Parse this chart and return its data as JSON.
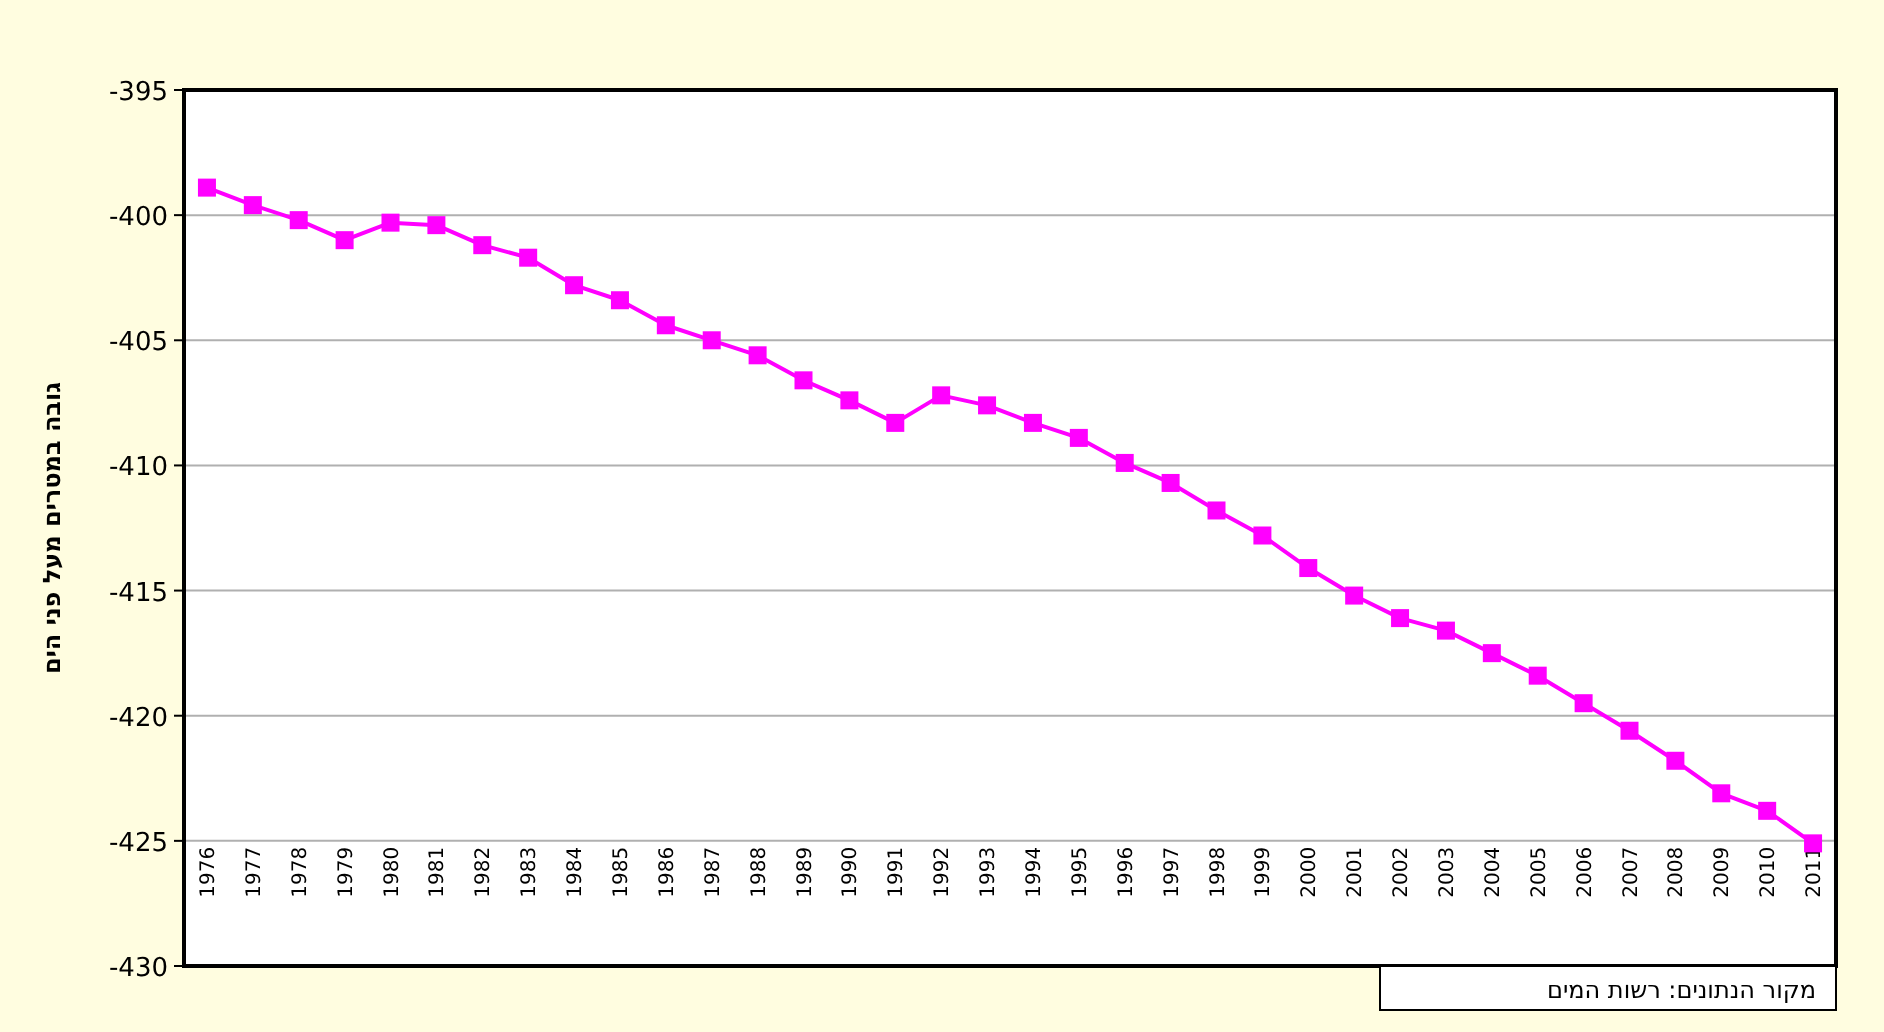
{
  "chart_data": {
    "type": "line",
    "ylabel": "גובה במטרים מעל פני הים",
    "categories": [
      "1976",
      "1977",
      "1978",
      "1979",
      "1980",
      "1981",
      "1982",
      "1983",
      "1984",
      "1985",
      "1986",
      "1987",
      "1988",
      "1989",
      "1990",
      "1991",
      "1992",
      "1993",
      "1994",
      "1995",
      "1996",
      "1997",
      "1998",
      "1999",
      "2000",
      "2001",
      "2002",
      "2003",
      "2004",
      "2005",
      "2006",
      "2007",
      "2008",
      "2009",
      "2010",
      "2011"
    ],
    "values": [
      -398.9,
      -399.6,
      -400.2,
      -401.0,
      -400.3,
      -400.4,
      -401.2,
      -401.7,
      -402.8,
      -403.4,
      -404.4,
      -405.0,
      -405.6,
      -406.6,
      -407.4,
      -408.3,
      -407.2,
      -407.6,
      -408.3,
      -408.9,
      -409.9,
      -410.7,
      -411.8,
      -412.8,
      -414.1,
      -415.2,
      -416.1,
      -416.6,
      -417.5,
      -418.4,
      -419.5,
      -420.6,
      -421.8,
      -423.1,
      -423.8,
      -425.1
    ],
    "color": "#ff00ff",
    "marker": "square",
    "line_style": "solid",
    "ylim": [
      -430,
      -395
    ],
    "yticks": [
      -395,
      -400,
      -405,
      -410,
      -415,
      -420,
      -425,
      -430
    ],
    "grid": "y",
    "annotations": [
      "מקור הנתונים: רשות המים"
    ]
  }
}
